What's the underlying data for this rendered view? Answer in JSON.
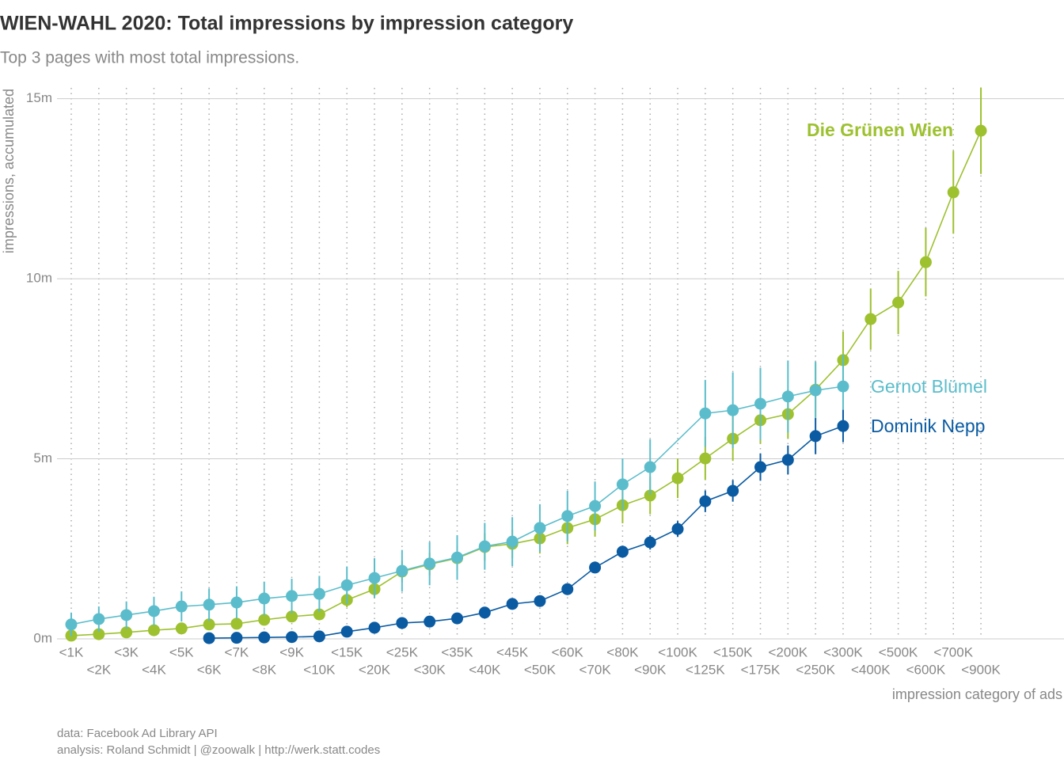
{
  "chart_data": {
    "type": "line",
    "title": "WIEN-WAHL 2020: Total impressions by impression category",
    "subtitle": "Top 3 pages with most total impressions.",
    "x_label": "impression category of ads",
    "y_label": "impressions, accumulated",
    "caption": [
      "data: Facebook Ad Library API",
      "analysis: Roland Schmidt | @zoowalk | http://werk.statt.codes"
    ],
    "categories": [
      "<1K",
      "<2K",
      "<3K",
      "<4K",
      "<5K",
      "<6K",
      "<7K",
      "<8K",
      "<9K",
      "<10K",
      "<15K",
      "<20K",
      "<25K",
      "<30K",
      "<35K",
      "<40K",
      "<45K",
      "<50K",
      "<60K",
      "<70K",
      "<80K",
      "<90K",
      "<100K",
      "<125K",
      "<150K",
      "<175K",
      "<200K",
      "<250K",
      "<300K",
      "<400K",
      "<500K",
      "<600K",
      "<700K",
      "<900K"
    ],
    "ylim": [
      0,
      15.3
    ],
    "yticks": [
      {
        "value": 0,
        "label": "0m"
      },
      {
        "value": 5,
        "label": "5m"
      },
      {
        "value": 10,
        "label": "10m"
      },
      {
        "value": 15,
        "label": "15m"
      }
    ],
    "grid": true,
    "series": [
      {
        "name": "Die Grünen Wien",
        "color": "#9dc12f",
        "x": [
          "<1K",
          "<2K",
          "<3K",
          "<4K",
          "<5K",
          "<6K",
          "<7K",
          "<8K",
          "<9K",
          "<10K",
          "<15K",
          "<20K",
          "<25K",
          "<30K",
          "<35K",
          "<40K",
          "<45K",
          "<50K",
          "<60K",
          "<70K",
          "<80K",
          "<90K",
          "<100K",
          "<125K",
          "<150K",
          "<175K",
          "<200K",
          "<250K",
          "<300K",
          "<400K",
          "<500K",
          "<600K",
          "<700K",
          "<900K"
        ],
        "values": [
          0.09,
          0.13,
          0.18,
          0.24,
          0.29,
          0.4,
          0.42,
          0.53,
          0.62,
          0.68,
          1.08,
          1.38,
          1.87,
          2.07,
          2.24,
          2.55,
          2.64,
          2.79,
          3.08,
          3.32,
          3.71,
          3.98,
          4.46,
          5.01,
          5.56,
          6.07,
          6.24,
          6.92,
          7.74,
          8.88,
          9.34,
          10.46,
          12.4,
          14.11
        ],
        "errors": [
          0.05,
          0.06,
          0.07,
          0.08,
          0.09,
          0.1,
          0.1,
          0.12,
          0.13,
          0.14,
          0.2,
          0.25,
          0.3,
          0.32,
          0.35,
          0.38,
          0.4,
          0.42,
          0.45,
          0.48,
          0.5,
          0.52,
          0.55,
          0.6,
          0.62,
          0.65,
          0.68,
          0.74,
          0.8,
          0.85,
          0.88,
          0.95,
          1.15,
          1.2
        ]
      },
      {
        "name": "Gernot Blümel",
        "color": "#5bbdcb",
        "x": [
          "<1K",
          "<2K",
          "<3K",
          "<4K",
          "<5K",
          "<6K",
          "<7K",
          "<8K",
          "<9K",
          "<10K",
          "<15K",
          "<20K",
          "<25K",
          "<30K",
          "<35K",
          "<40K",
          "<45K",
          "<50K",
          "<60K",
          "<70K",
          "<80K",
          "<90K",
          "<125K",
          "<150K",
          "<175K",
          "<200K",
          "<250K",
          "<300K"
        ],
        "values": [
          0.4,
          0.55,
          0.66,
          0.77,
          0.9,
          0.95,
          1.01,
          1.12,
          1.19,
          1.25,
          1.49,
          1.69,
          1.89,
          2.09,
          2.26,
          2.57,
          2.7,
          3.08,
          3.41,
          3.69,
          4.29,
          4.77,
          6.26,
          6.35,
          6.53,
          6.73,
          6.9,
          7.01
        ],
        "errors": [
          0.33,
          0.35,
          0.38,
          0.4,
          0.42,
          0.45,
          0.45,
          0.47,
          0.48,
          0.5,
          0.52,
          0.55,
          0.58,
          0.6,
          0.62,
          0.65,
          0.68,
          0.66,
          0.7,
          0.68,
          0.72,
          0.77,
          0.93,
          1.05,
          1.0,
          1.0,
          0.8,
          0.88
        ]
      },
      {
        "name": "Dominik Nepp",
        "color": "#0a5ba2",
        "x": [
          "<6K",
          "<7K",
          "<8K",
          "<9K",
          "<10K",
          "<15K",
          "<20K",
          "<25K",
          "<30K",
          "<35K",
          "<40K",
          "<45K",
          "<50K",
          "<60K",
          "<70K",
          "<80K",
          "<90K",
          "<100K",
          "<125K",
          "<150K",
          "<175K",
          "<200K",
          "<250K",
          "<300K"
        ],
        "values": [
          0.02,
          0.03,
          0.04,
          0.05,
          0.07,
          0.2,
          0.31,
          0.44,
          0.48,
          0.57,
          0.73,
          0.97,
          1.05,
          1.38,
          1.98,
          2.42,
          2.68,
          3.05,
          3.82,
          4.11,
          4.77,
          4.97,
          5.63,
          5.91
        ],
        "errors": [
          0.02,
          0.02,
          0.02,
          0.02,
          0.03,
          0.05,
          0.06,
          0.07,
          0.07,
          0.08,
          0.09,
          0.1,
          0.1,
          0.12,
          0.15,
          0.17,
          0.2,
          0.22,
          0.3,
          0.3,
          0.38,
          0.4,
          0.5,
          0.45
        ]
      }
    ]
  }
}
